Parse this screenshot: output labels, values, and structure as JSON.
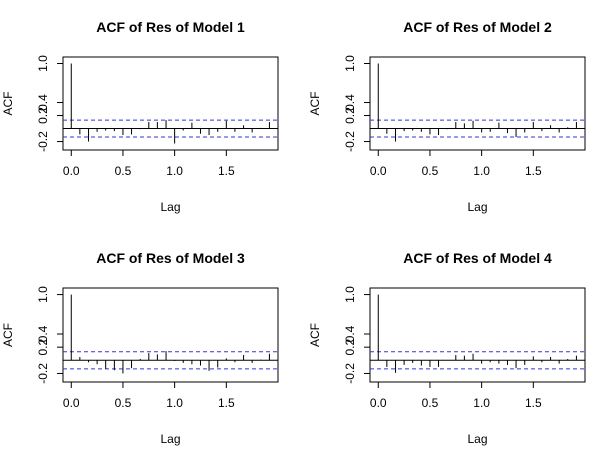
{
  "chart_data": [
    {
      "type": "bar",
      "title": "ACF of Res of Model 1",
      "xlabel": "Lag",
      "ylabel": "ACF",
      "xlim": [
        -0.08,
        2.0
      ],
      "ylim": [
        -0.33,
        1.1
      ],
      "x_ticks": [
        "0.0",
        "0.5",
        "1.0",
        "1.5"
      ],
      "y_ticks": [
        "-0.2",
        "0.2",
        "0.4",
        "1.0"
      ],
      "ci": [
        0.13,
        -0.13
      ],
      "lags": [
        0,
        0.083,
        0.167,
        0.25,
        0.333,
        0.417,
        0.5,
        0.583,
        0.667,
        0.75,
        0.833,
        0.917,
        1.0,
        1.083,
        1.167,
        1.25,
        1.333,
        1.417,
        1.5,
        1.583,
        1.667,
        1.75,
        1.833,
        1.917
      ],
      "values": [
        1.0,
        -0.09,
        -0.2,
        -0.05,
        -0.03,
        -0.04,
        -0.1,
        -0.09,
        -0.01,
        0.1,
        0.1,
        0.13,
        -0.23,
        -0.03,
        0.09,
        -0.08,
        -0.1,
        -0.05,
        0.12,
        -0.05,
        0.05,
        -0.06,
        0.01,
        0.1
      ]
    },
    {
      "type": "bar",
      "title": "ACF of Res of Model 2",
      "xlabel": "Lag",
      "ylabel": "ACF",
      "xlim": [
        -0.08,
        2.0
      ],
      "ylim": [
        -0.33,
        1.1
      ],
      "x_ticks": [
        "0.0",
        "0.5",
        "1.0",
        "1.5"
      ],
      "y_ticks": [
        "-0.2",
        "0.2",
        "0.4",
        "1.0"
      ],
      "ci": [
        0.13,
        -0.13
      ],
      "lags": [
        0,
        0.083,
        0.167,
        0.25,
        0.333,
        0.417,
        0.5,
        0.583,
        0.667,
        0.75,
        0.833,
        0.917,
        1.0,
        1.083,
        1.167,
        1.25,
        1.333,
        1.417,
        1.5,
        1.583,
        1.667,
        1.75,
        1.833,
        1.917
      ],
      "values": [
        1.0,
        -0.08,
        -0.2,
        -0.04,
        -0.03,
        -0.05,
        -0.09,
        -0.1,
        -0.01,
        0.1,
        0.08,
        0.12,
        -0.06,
        -0.05,
        0.09,
        -0.07,
        -0.13,
        -0.06,
        0.1,
        -0.04,
        0.05,
        -0.06,
        0.02,
        0.1
      ]
    },
    {
      "type": "bar",
      "title": "ACF of Res of Model 3",
      "xlabel": "Lag",
      "ylabel": "ACF",
      "xlim": [
        -0.08,
        2.0
      ],
      "ylim": [
        -0.33,
        1.1
      ],
      "x_ticks": [
        "0.0",
        "0.5",
        "1.0",
        "1.5"
      ],
      "y_ticks": [
        "-0.2",
        "0.2",
        "0.4",
        "1.0"
      ],
      "ci": [
        0.13,
        -0.13
      ],
      "lags": [
        0,
        0.083,
        0.167,
        0.25,
        0.333,
        0.417,
        0.5,
        0.583,
        0.667,
        0.75,
        0.833,
        0.917,
        1.0,
        1.083,
        1.167,
        1.25,
        1.333,
        1.417,
        1.5,
        1.583,
        1.667,
        1.75,
        1.833,
        1.917
      ],
      "values": [
        1.0,
        0.05,
        -0.03,
        -0.06,
        -0.13,
        -0.15,
        -0.2,
        -0.12,
        0.02,
        0.11,
        0.09,
        0.14,
        -0.01,
        -0.04,
        -0.06,
        -0.08,
        -0.16,
        -0.11,
        0.03,
        -0.03,
        0.08,
        -0.04,
        0.01,
        0.1
      ]
    },
    {
      "type": "bar",
      "title": "ACF of Res of Model 4",
      "xlabel": "Lag",
      "ylabel": "ACF",
      "xlim": [
        -0.08,
        2.0
      ],
      "ylim": [
        -0.33,
        1.1
      ],
      "x_ticks": [
        "0.0",
        "0.5",
        "1.0",
        "1.5"
      ],
      "y_ticks": [
        "-0.2",
        "0.2",
        "0.4",
        "1.0"
      ],
      "ci": [
        0.13,
        -0.13
      ],
      "lags": [
        0,
        0.083,
        0.167,
        0.25,
        0.333,
        0.417,
        0.5,
        0.583,
        0.667,
        0.75,
        0.833,
        0.917,
        1.0,
        1.083,
        1.167,
        1.25,
        1.333,
        1.417,
        1.5,
        1.583,
        1.667,
        1.75,
        1.833,
        1.917
      ],
      "values": [
        1.0,
        -0.1,
        -0.19,
        -0.07,
        -0.04,
        -0.08,
        -0.1,
        -0.1,
        0.0,
        0.08,
        0.07,
        0.1,
        -0.05,
        -0.03,
        -0.05,
        -0.07,
        -0.12,
        -0.07,
        0.06,
        -0.03,
        0.05,
        -0.05,
        0.02,
        0.07
      ]
    }
  ]
}
